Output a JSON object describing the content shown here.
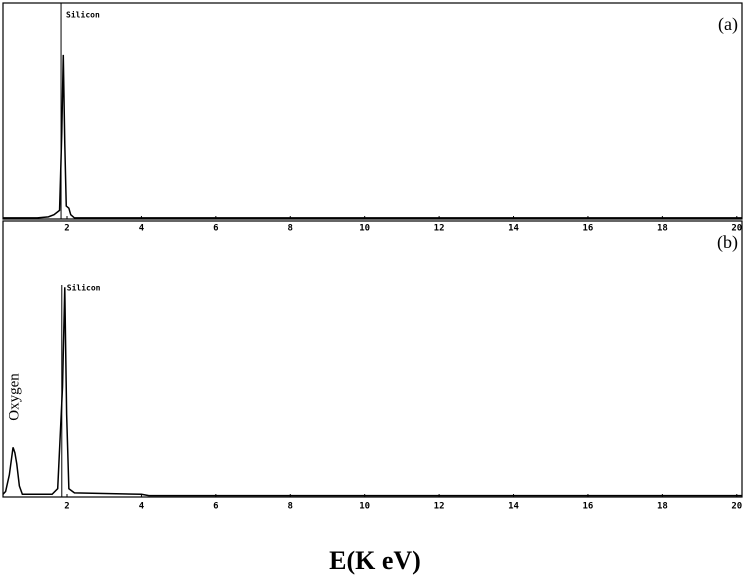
{
  "chart_data": [
    {
      "type": "line",
      "panel_label": "(a)",
      "x": [
        0.28,
        1.2,
        1.5,
        1.65,
        1.8,
        1.86,
        1.9,
        1.94,
        1.98,
        2.05,
        2.1,
        2.2,
        20.14
      ],
      "series": [
        {
          "color": "#000000",
          "values": [
            0.5,
            0.5,
            1,
            2,
            4,
            40,
            76,
            35,
            6,
            5,
            2,
            0.5,
            0.5
          ]
        }
      ],
      "annotations": [
        {
          "text": "Silicon",
          "x": 1.84
        }
      ],
      "xlim": [
        0.28,
        20.14
      ],
      "ylim": [
        0,
        100
      ],
      "xticks": [
        2,
        4,
        6,
        8,
        10,
        12,
        14,
        16,
        18,
        20
      ]
    },
    {
      "type": "line",
      "panel_label": "(b)",
      "xlabel": "E(K eV)",
      "x": [
        0.28,
        0.35,
        0.45,
        0.55,
        0.6,
        0.65,
        0.72,
        0.8,
        1.0,
        1.6,
        1.75,
        1.88,
        1.94,
        1.99,
        2.05,
        2.2,
        4.0,
        4.2,
        20.14
      ],
      "series": [
        {
          "color": "#000000",
          "values": [
            1,
            2,
            8,
            18,
            16,
            12,
            4,
            1,
            1,
            1,
            3,
            40,
            76,
            30,
            3,
            1.5,
            1,
            0.5,
            0.5
          ]
        }
      ],
      "annotations": [
        {
          "text": "Silicon",
          "x": 1.86
        },
        {
          "text": "Oxygen",
          "x": 0.6
        }
      ],
      "xlim": [
        0.28,
        20.14
      ],
      "ylim": [
        0,
        100
      ],
      "xticks": [
        2,
        4,
        6,
        8,
        10,
        12,
        14,
        16,
        18,
        20
      ]
    }
  ]
}
